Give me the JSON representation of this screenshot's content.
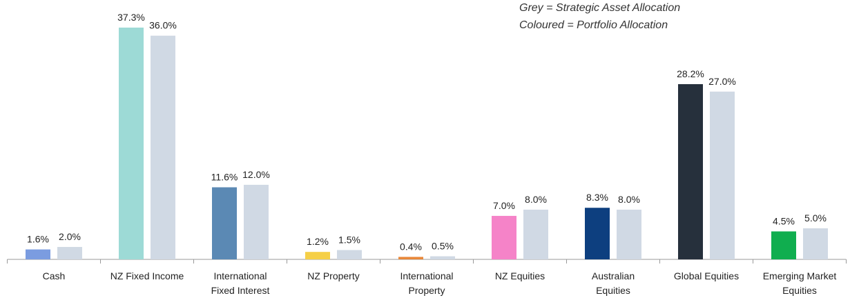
{
  "chart_data": {
    "type": "bar",
    "annotations": [
      "Grey = Strategic Asset Allocation",
      "Coloured = Portfolio Allocation"
    ],
    "categories": [
      [
        "Cash"
      ],
      [
        "NZ Fixed Income"
      ],
      [
        "International",
        "Fixed Interest"
      ],
      [
        "NZ Property"
      ],
      [
        "International",
        "Property"
      ],
      [
        "NZ Equities"
      ],
      [
        "Australian",
        "Equities"
      ],
      [
        "Global Equities"
      ],
      [
        "Emerging Market",
        "Equities"
      ]
    ],
    "series": [
      {
        "colors": [
          "#7b9ce0",
          "#9ddad6",
          "#5b89b4",
          "#f5cf47",
          "#e8883a",
          "#f583c8",
          "#0d3f7f",
          "#26303c",
          "#10ae4f"
        ],
        "values": [
          1.6,
          37.3,
          11.6,
          1.2,
          0.4,
          7.0,
          8.3,
          28.2,
          4.5
        ],
        "value_labels": [
          "1.6%",
          "37.3%",
          "11.6%",
          "1.2%",
          "0.4%",
          "7.0%",
          "8.3%",
          "28.2%",
          "4.5%"
        ]
      },
      {
        "color": "#d0d9e4",
        "values": [
          2.0,
          36.0,
          12.0,
          1.5,
          0.5,
          8.0,
          8.0,
          27.0,
          5.0
        ],
        "value_labels": [
          "2.0%",
          "36.0%",
          "12.0%",
          "1.5%",
          "0.5%",
          "8.0%",
          "8.0%",
          "27.0%",
          "5.0%"
        ]
      }
    ]
  }
}
